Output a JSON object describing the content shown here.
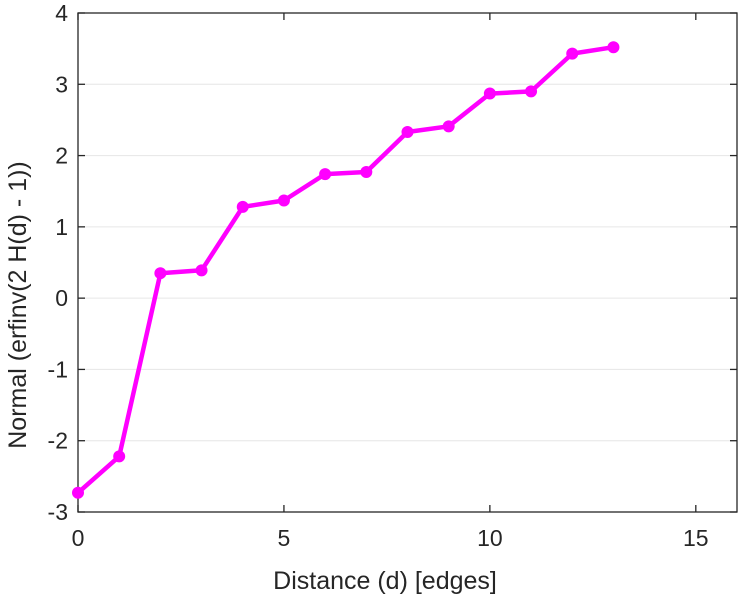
{
  "chart_data": {
    "type": "line",
    "title": "",
    "xlabel": "Distance (d) [edges]",
    "ylabel": "Normal (erfinv(2 H(d) - 1))",
    "xlim": [
      0,
      16
    ],
    "ylim": [
      -3,
      4
    ],
    "xticks": [
      0,
      5,
      10,
      15
    ],
    "yticks": [
      -3,
      -2,
      -1,
      0,
      1,
      2,
      3,
      4
    ],
    "grid": "y-major",
    "legend": "none",
    "x": [
      0,
      1,
      2,
      3,
      4,
      5,
      6,
      7,
      8,
      9,
      10,
      11,
      12,
      13
    ],
    "series": [
      {
        "color": "#ff00ff",
        "marker": "circle",
        "values": [
          -2.73,
          -2.22,
          0.35,
          0.39,
          1.28,
          1.37,
          1.74,
          1.77,
          2.33,
          2.41,
          2.87,
          2.9,
          3.43,
          3.52
        ]
      }
    ]
  }
}
